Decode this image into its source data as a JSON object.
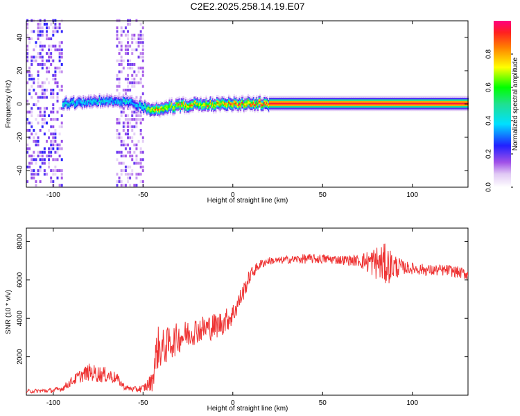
{
  "chart_data": [
    {
      "type": "heatmap",
      "title": "C2E2.2025.258.14.19.E07",
      "xlabel": "Height of straight line (km)",
      "ylabel": "Frequency (Hz)",
      "xlim": [
        -115,
        131
      ],
      "ylim": [
        -50,
        50
      ],
      "xticks": [
        -100,
        -50,
        0,
        50,
        100
      ],
      "xtick_labels": [
        "-100",
        "-50",
        "0",
        "50",
        "100"
      ],
      "yticks": [
        -40,
        -20,
        0,
        20,
        40
      ],
      "ytick_labels": [
        "-40",
        "-20",
        "0",
        "20",
        "40"
      ],
      "colorbar": {
        "label": "Normalized spectral amplitude",
        "range": [
          0,
          1
        ],
        "ticks": [
          0.0,
          0.2,
          0.4,
          0.6,
          0.8
        ],
        "tick_labels": [
          "0.0",
          "0.2",
          "0.4",
          "0.6",
          "0.8"
        ]
      },
      "ridge": {
        "x": [
          -95,
          -85,
          -75,
          -65,
          -60,
          -55,
          -50,
          -45,
          -40,
          -35,
          -30,
          -25,
          -20,
          -10,
          0,
          10,
          20,
          50,
          90,
          131
        ],
        "y": [
          0.5,
          1,
          2,
          1.5,
          2,
          0,
          -2,
          -3,
          -2.5,
          -1.5,
          -1,
          -0.5,
          0,
          0,
          0.3,
          0.5,
          0.5,
          0.5,
          0.5,
          0.5
        ],
        "amp": [
          0.45,
          0.42,
          0.44,
          0.4,
          0.45,
          0.38,
          0.5,
          0.85,
          0.8,
          0.75,
          0.85,
          0.9,
          0.75,
          0.85,
          0.9,
          0.95,
          0.95,
          0.95,
          0.95,
          0.95
        ]
      },
      "noise_bands": [
        {
          "x_range": [
            -115,
            -95
          ],
          "amp": [
            0.05,
            0.25
          ]
        },
        {
          "x_range": [
            -65,
            -50
          ],
          "amp": [
            0.05,
            0.2
          ]
        }
      ]
    },
    {
      "type": "line",
      "xlabel": "Height of straight line (km)",
      "ylabel": "SNR (10 * v/v)",
      "xlim": [
        -115,
        131
      ],
      "ylim": [
        0,
        8700
      ],
      "xticks": [
        -100,
        -50,
        0,
        50,
        100
      ],
      "xtick_labels": [
        "-100",
        "-50",
        "0",
        "50",
        "100"
      ],
      "yticks": [
        2000,
        4000,
        6000,
        8000
      ],
      "ytick_labels": [
        "2000",
        "4000",
        "6000",
        "8000"
      ],
      "color": "#ee3333",
      "x": [
        -115,
        -100,
        -95,
        -90,
        -85,
        -80,
        -75,
        -70,
        -65,
        -60,
        -55,
        -50,
        -45,
        -42,
        -40,
        -35,
        -30,
        -25,
        -20,
        -15,
        -10,
        -5,
        0,
        5,
        10,
        15,
        20,
        25,
        30,
        40,
        50,
        60,
        70,
        80,
        85,
        90,
        95,
        100,
        110,
        120,
        131
      ],
      "y": [
        200,
        250,
        350,
        700,
        1000,
        1200,
        1100,
        1050,
        900,
        400,
        300,
        350,
        700,
        2500,
        2400,
        2700,
        3000,
        3200,
        3400,
        3500,
        3600,
        3800,
        4200,
        5200,
        6300,
        6800,
        7000,
        7000,
        7050,
        7100,
        7100,
        7050,
        7000,
        6900,
        6800,
        6700,
        6650,
        6600,
        6500,
        6500,
        6300
      ],
      "noise": [
        100,
        120,
        150,
        250,
        350,
        450,
        450,
        400,
        300,
        150,
        150,
        200,
        500,
        1200,
        1000,
        900,
        800,
        750,
        700,
        700,
        700,
        650,
        600,
        500,
        350,
        250,
        200,
        200,
        200,
        250,
        250,
        250,
        300,
        900,
        1100,
        700,
        350,
        300,
        300,
        300,
        300
      ]
    }
  ]
}
